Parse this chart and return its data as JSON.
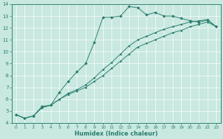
{
  "xlabel": "Humidex (Indice chaleur)",
  "xlim": [
    -0.5,
    23.5
  ],
  "ylim": [
    4,
    14
  ],
  "xticks": [
    0,
    1,
    2,
    3,
    4,
    5,
    6,
    7,
    8,
    9,
    10,
    11,
    12,
    13,
    14,
    15,
    16,
    17,
    18,
    19,
    20,
    21,
    22,
    23
  ],
  "yticks": [
    4,
    5,
    6,
    7,
    8,
    9,
    10,
    11,
    12,
    13,
    14
  ],
  "line_color": "#2a7d6e",
  "bg_color": "#c8e8e0",
  "grid_color": "#b0d8cc",
  "line1_x": [
    0,
    1,
    2,
    3,
    4,
    5,
    6,
    7,
    8,
    9,
    10,
    11,
    12,
    13,
    14,
    15,
    16,
    17,
    18,
    19,
    20,
    21,
    22,
    23
  ],
  "line1_y": [
    4.7,
    4.4,
    4.6,
    5.4,
    5.5,
    6.6,
    7.5,
    8.3,
    9.0,
    10.8,
    12.9,
    12.9,
    13.0,
    13.8,
    13.7,
    13.1,
    13.3,
    13.0,
    13.0,
    12.8,
    12.6,
    12.5,
    12.65,
    12.1
  ],
  "line2_x": [
    0,
    1,
    2,
    3,
    4,
    5,
    6,
    7,
    8,
    9,
    10,
    11,
    12,
    13,
    14,
    15,
    16,
    17,
    18,
    19,
    20,
    21,
    22,
    23
  ],
  "line2_y": [
    4.7,
    4.4,
    4.6,
    5.3,
    5.5,
    6.0,
    6.5,
    6.8,
    7.2,
    7.8,
    8.5,
    9.1,
    9.8,
    10.5,
    11.0,
    11.3,
    11.6,
    11.9,
    12.1,
    12.3,
    12.5,
    12.6,
    12.7,
    12.1
  ],
  "line3_x": [
    0,
    1,
    2,
    3,
    4,
    5,
    6,
    7,
    8,
    9,
    10,
    11,
    12,
    13,
    14,
    15,
    16,
    17,
    18,
    19,
    20,
    21,
    22,
    23
  ],
  "line3_y": [
    4.7,
    4.4,
    4.6,
    5.3,
    5.5,
    6.0,
    6.4,
    6.7,
    7.0,
    7.5,
    8.0,
    8.6,
    9.2,
    9.8,
    10.4,
    10.7,
    11.0,
    11.3,
    11.6,
    11.8,
    12.1,
    12.3,
    12.5,
    12.1
  ]
}
